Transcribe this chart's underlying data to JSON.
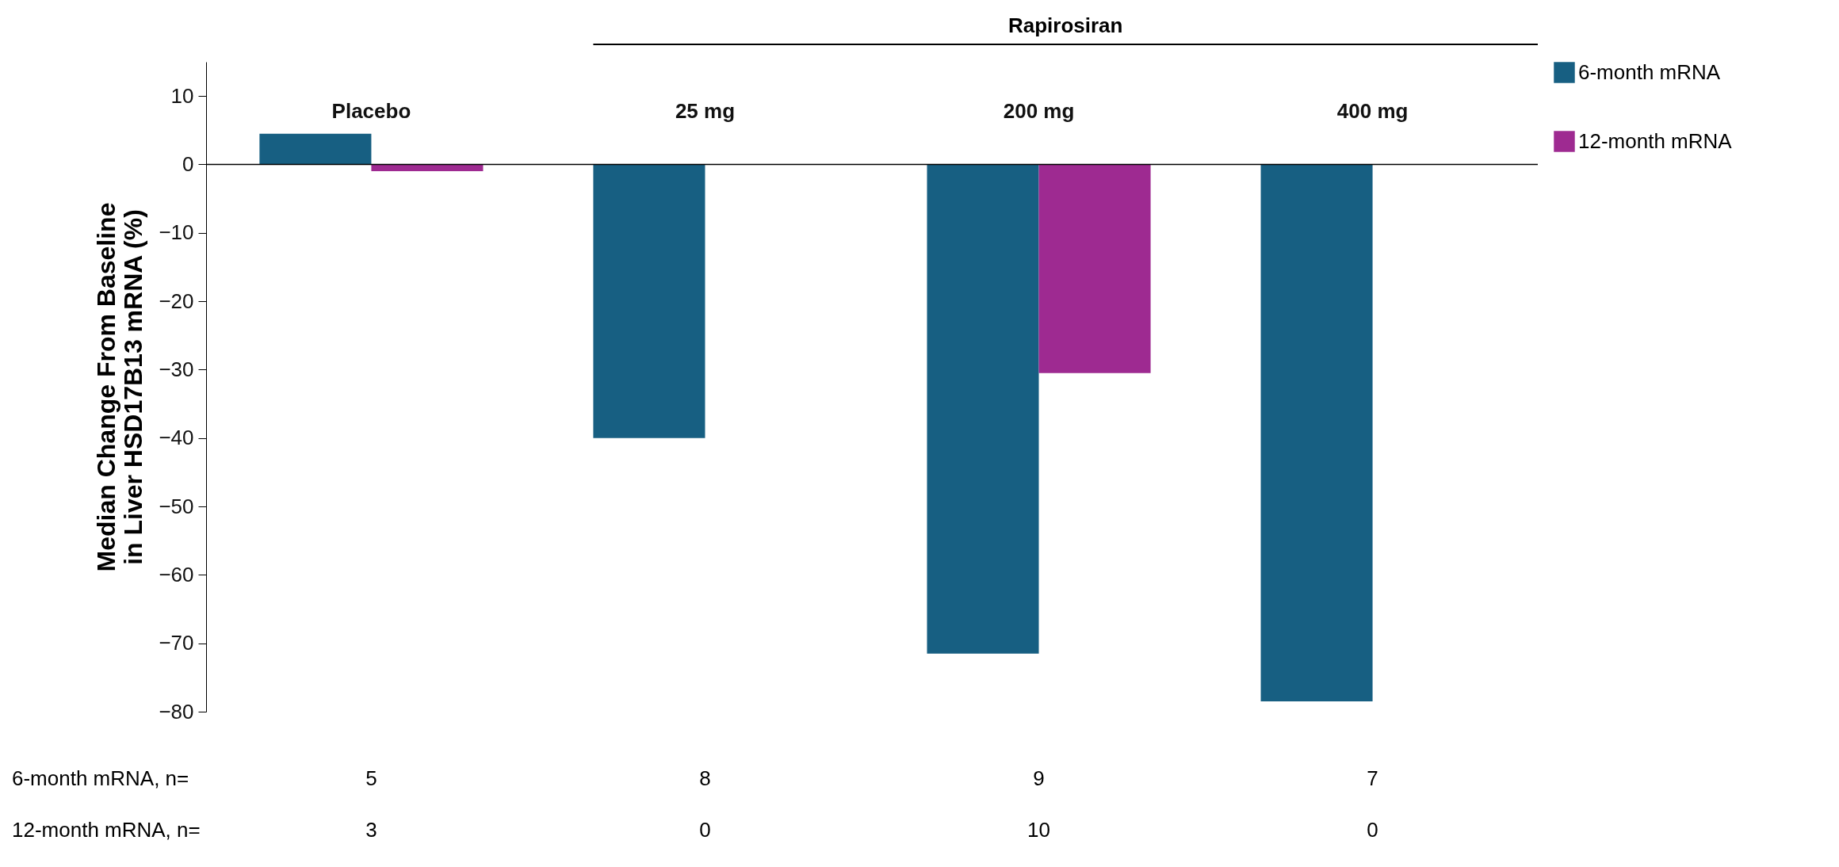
{
  "chart_data": {
    "type": "bar",
    "ylabel": "Median Change From Baseline in Liver HSD17B13 mRNA (%)",
    "categories": [
      "Placebo",
      "25 mg",
      "200 mg",
      "400 mg"
    ],
    "series": [
      {
        "name": "6-month mRNA",
        "color": "#175f82",
        "values": [
          4.5,
          -40,
          -71.5,
          -78.5
        ]
      },
      {
        "name": "12-month mRNA",
        "color": "#9e2a91",
        "values": [
          -1,
          null,
          -30.5,
          null
        ]
      }
    ],
    "ylim": [
      -80,
      15
    ],
    "yticks": [
      -80,
      -70,
      -60,
      -50,
      -40,
      -30,
      -20,
      -10,
      0,
      10
    ],
    "grid": false,
    "legend": "right",
    "annotations": [
      "Rapirosiran",
      "6-month mRNA, n=",
      "5",
      "8",
      "9",
      "7",
      "12-month mRNA, n=",
      "3",
      "0",
      "10",
      "0"
    ]
  }
}
